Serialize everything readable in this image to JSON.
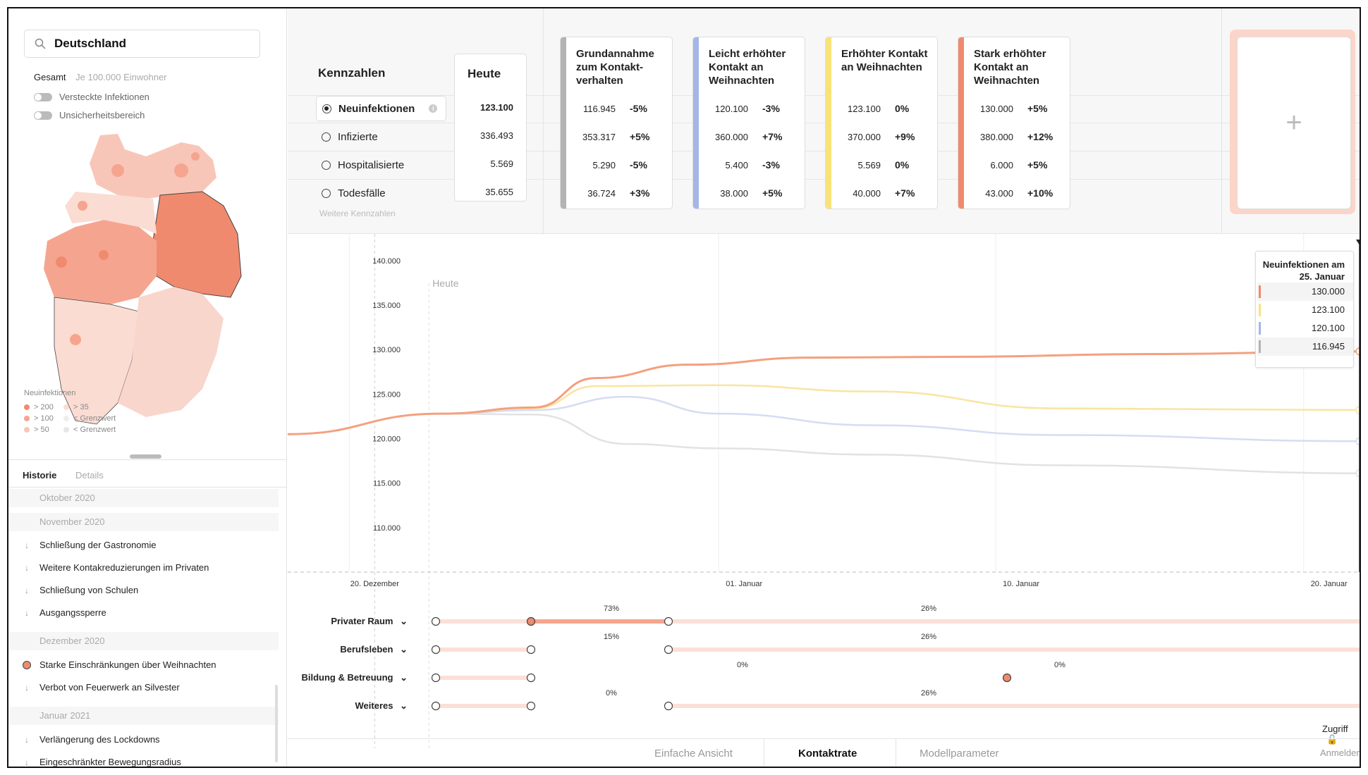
{
  "search": {
    "value": "Deutschland"
  },
  "view_modes": {
    "total": "Gesamt",
    "per_capita": "Je 100.000 Einwohner"
  },
  "toggles": [
    {
      "label": "Versteckte Infektionen",
      "on": false
    },
    {
      "label": "Unsicherheitsbereich",
      "on": false
    }
  ],
  "map_legend": {
    "title": "Neuinfektionen",
    "items": [
      {
        "label": "> 200",
        "color": "#f08a6e"
      },
      {
        "label": "> 100",
        "color": "#f5a58f"
      },
      {
        "label": "> 50",
        "color": "#f8c6b8"
      },
      {
        "label": "> 35",
        "color": "#fbdcd3"
      },
      {
        "label": "< Grenzwert",
        "color": "#eeeeee"
      },
      {
        "label": "< Grenzwert",
        "color": "#e6e6e6"
      }
    ]
  },
  "left_tabs": {
    "history": "Historie",
    "details": "Details"
  },
  "history": [
    {
      "month": "Oktober 2020",
      "events": []
    },
    {
      "month": "November 2020",
      "events": [
        "Schließung der Gastronomie",
        "Weitere Kontakreduzierungen im Privaten",
        "Schließung von Schulen",
        "Ausgangssperre"
      ]
    },
    {
      "month": "Dezember 2020",
      "events": [
        "Starke Einschränkungen über Weihnachten",
        "Verbot von Feuerwerk an Silvester"
      ]
    },
    {
      "month": "Januar 2021",
      "events": [
        "Verlängerung des Lockdowns",
        "Eingeschränkter Bewegungsradius"
      ]
    }
  ],
  "kennzahlen": {
    "title": "Kennzahlen",
    "items": [
      "Neuinfektionen",
      "Infizierte",
      "Hospitalisierte",
      "Todesfälle"
    ],
    "selected": 0,
    "more": "Weitere Kennzahlen"
  },
  "today": {
    "header": "Heute",
    "values": [
      "123.100",
      "336.493",
      "5.569",
      "35.655"
    ]
  },
  "scenarios": [
    {
      "title": "Grundannahme zum Kontakt-verhalten",
      "color": "#b3b3b3",
      "values": [
        "116.945",
        "353.317",
        "5.290",
        "36.724"
      ],
      "changes": [
        "-5%",
        "+5%",
        "-5%",
        "+3%"
      ]
    },
    {
      "title": "Leicht erhöhter Kontakt an Weihnachten",
      "color": "#a4b5e6",
      "values": [
        "120.100",
        "360.000",
        "5.400",
        "38.000"
      ],
      "changes": [
        "-3%",
        "+7%",
        "-3%",
        "+5%"
      ]
    },
    {
      "title": "Erhöhter Kontakt an Weihnachten",
      "color": "#f8e27a",
      "values": [
        "123.100",
        "370.000",
        "5.569",
        "40.000"
      ],
      "changes": [
        "0%",
        "+9%",
        "0%",
        "+7%"
      ]
    },
    {
      "title": "Stark erhöhter Kontakt an Weihnachten",
      "color": "#f08a6e",
      "values": [
        "130.000",
        "380.000",
        "6.000",
        "43.000"
      ],
      "changes": [
        "+5%",
        "+12%",
        "+5%",
        "+10%"
      ]
    }
  ],
  "add_scenario": "+",
  "chart_data": {
    "type": "line",
    "ylim": [
      105000,
      143000
    ],
    "y_ticks": [
      "140.000",
      "135.000",
      "130.000",
      "125.000",
      "120.000",
      "115.000",
      "110.000"
    ],
    "y_tick_values": [
      140000,
      135000,
      130000,
      125000,
      120000,
      115000,
      110000
    ],
    "x_ticks": [
      "20. Dezember",
      "01. Januar",
      "10. Januar",
      "20. Januar"
    ],
    "x_tick_days": [
      0,
      12,
      21,
      31
    ],
    "today_label": "Heute",
    "today_day": 2.7,
    "x_range_days": [
      -2,
      33
    ],
    "series": [
      {
        "color": "#f4a07f",
        "points": [
          [
            -2,
            120500
          ],
          [
            3,
            122800
          ],
          [
            6,
            123500
          ],
          [
            8,
            126800
          ],
          [
            11,
            128300
          ],
          [
            15,
            129100
          ],
          [
            20,
            129200
          ],
          [
            26,
            129500
          ],
          [
            33,
            129800
          ]
        ]
      },
      {
        "color": "#f9e4a0",
        "points": [
          [
            3,
            122800
          ],
          [
            6,
            123400
          ],
          [
            8,
            125900
          ],
          [
            12,
            126000
          ],
          [
            17,
            125300
          ],
          [
            23,
            123400
          ],
          [
            33,
            123200
          ]
        ]
      },
      {
        "color": "#d6dcf3",
        "points": [
          [
            3,
            122800
          ],
          [
            6,
            123200
          ],
          [
            9,
            124700
          ],
          [
            12,
            122800
          ],
          [
            17,
            121500
          ],
          [
            23,
            120400
          ],
          [
            33,
            119700
          ]
        ]
      },
      {
        "color": "#e2e2e2",
        "points": [
          [
            3,
            122800
          ],
          [
            6,
            122700
          ],
          [
            9,
            119400
          ],
          [
            12,
            118900
          ],
          [
            17,
            118200
          ],
          [
            23,
            117000
          ],
          [
            33,
            116100
          ]
        ]
      }
    ],
    "tooltip": {
      "title": "Neuinfektionen am 25. Januar",
      "rows": [
        {
          "value": "130.000",
          "color": "#f08a6e"
        },
        {
          "value": "123.100",
          "color": "#f8e27a"
        },
        {
          "value": "120.100",
          "color": "#a4b5e6"
        },
        {
          "value": "116.945",
          "color": "#b3b3b3"
        }
      ]
    }
  },
  "contact_controls": [
    {
      "label": "Privater Raum",
      "labels": [
        {
          "text": "73%",
          "day": 8.3
        },
        {
          "text": "26%",
          "day": 23.3
        }
      ],
      "segment": {
        "from": 4.5,
        "to": 11,
        "value": 0.73
      },
      "filled": [
        4.5
      ],
      "points": [
        0,
        4.5,
        11
      ]
    },
    {
      "label": "Berufsleben",
      "labels": [
        {
          "text": "15%",
          "day": 8.3
        },
        {
          "text": "26%",
          "day": 23.3
        }
      ],
      "segment": null,
      "filled": [],
      "points": [
        0,
        4.5,
        11
      ]
    },
    {
      "label": "Bildung & Betreuung",
      "labels": [
        {
          "text": "0%",
          "day": 14.5
        },
        {
          "text": "0%",
          "day": 29.5
        }
      ],
      "segment": null,
      "filled": [
        27
      ],
      "points": [
        0,
        4.5,
        27
      ]
    },
    {
      "label": "Weiteres",
      "labels": [
        {
          "text": "0%",
          "day": 8.3
        },
        {
          "text": "26%",
          "day": 23.3
        }
      ],
      "segment": null,
      "filled": [],
      "points": [
        0,
        4.5,
        11
      ]
    }
  ],
  "access": "Zugriff",
  "bottom_tabs": {
    "simple": "Einfache Ansicht",
    "contact": "Kontaktrate",
    "model": "Modellparameter",
    "login": "Anmelden"
  }
}
